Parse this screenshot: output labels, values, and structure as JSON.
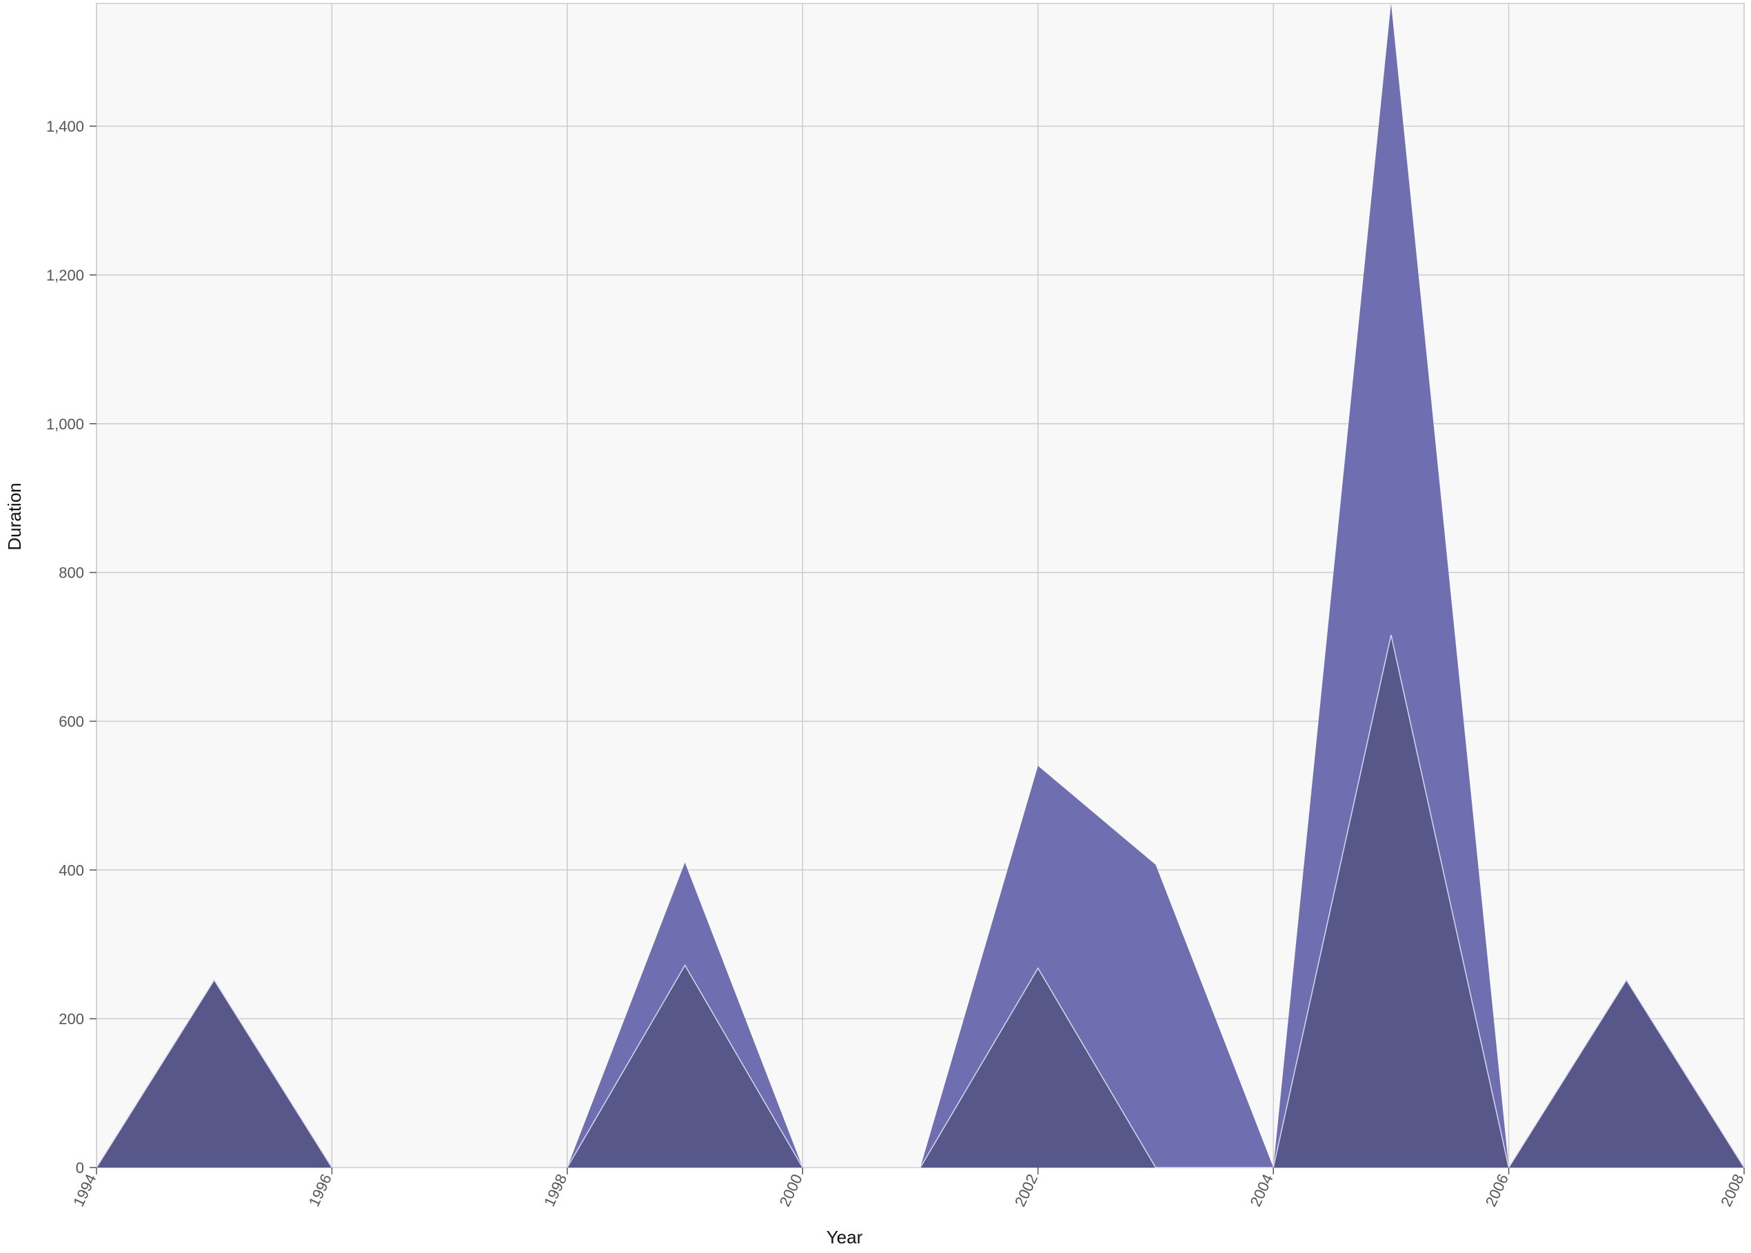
{
  "chart_data": {
    "type": "area",
    "stacked": true,
    "title": "",
    "xlabel": "Year",
    "ylabel": "Duration",
    "xlim": [
      1994,
      2008
    ],
    "ylim": [
      0,
      1565
    ],
    "x_ticks": [
      1994,
      1996,
      1998,
      2000,
      2002,
      2004,
      2006,
      2008
    ],
    "y_ticks": [
      0,
      200,
      400,
      600,
      800,
      1000,
      1200,
      1400
    ],
    "y_tick_labels": [
      "0",
      "200",
      "400",
      "600",
      "800",
      "1,000",
      "1,200",
      "1,400"
    ],
    "grid": true,
    "legend": "none",
    "x": [
      1994,
      1995,
      1996,
      1997,
      1998,
      1999,
      2000,
      2001,
      2002,
      2003,
      2004,
      2005,
      2006,
      2007,
      2008
    ],
    "series": [
      {
        "values": [
          0,
          252,
          0,
          0,
          0,
          272,
          0,
          0,
          268,
          0,
          0,
          716,
          0,
          252,
          0
        ],
        "color": "#57578a"
      },
      {
        "values": [
          0,
          0,
          0,
          0,
          0,
          138,
          0,
          0,
          272,
          407,
          0,
          849,
          0,
          0,
          0
        ],
        "color": "#6e6eb0"
      }
    ],
    "colors": {
      "plot_background": "#f8f8f8",
      "grid": "#cccccc",
      "separator": "#d8d8ee"
    }
  }
}
